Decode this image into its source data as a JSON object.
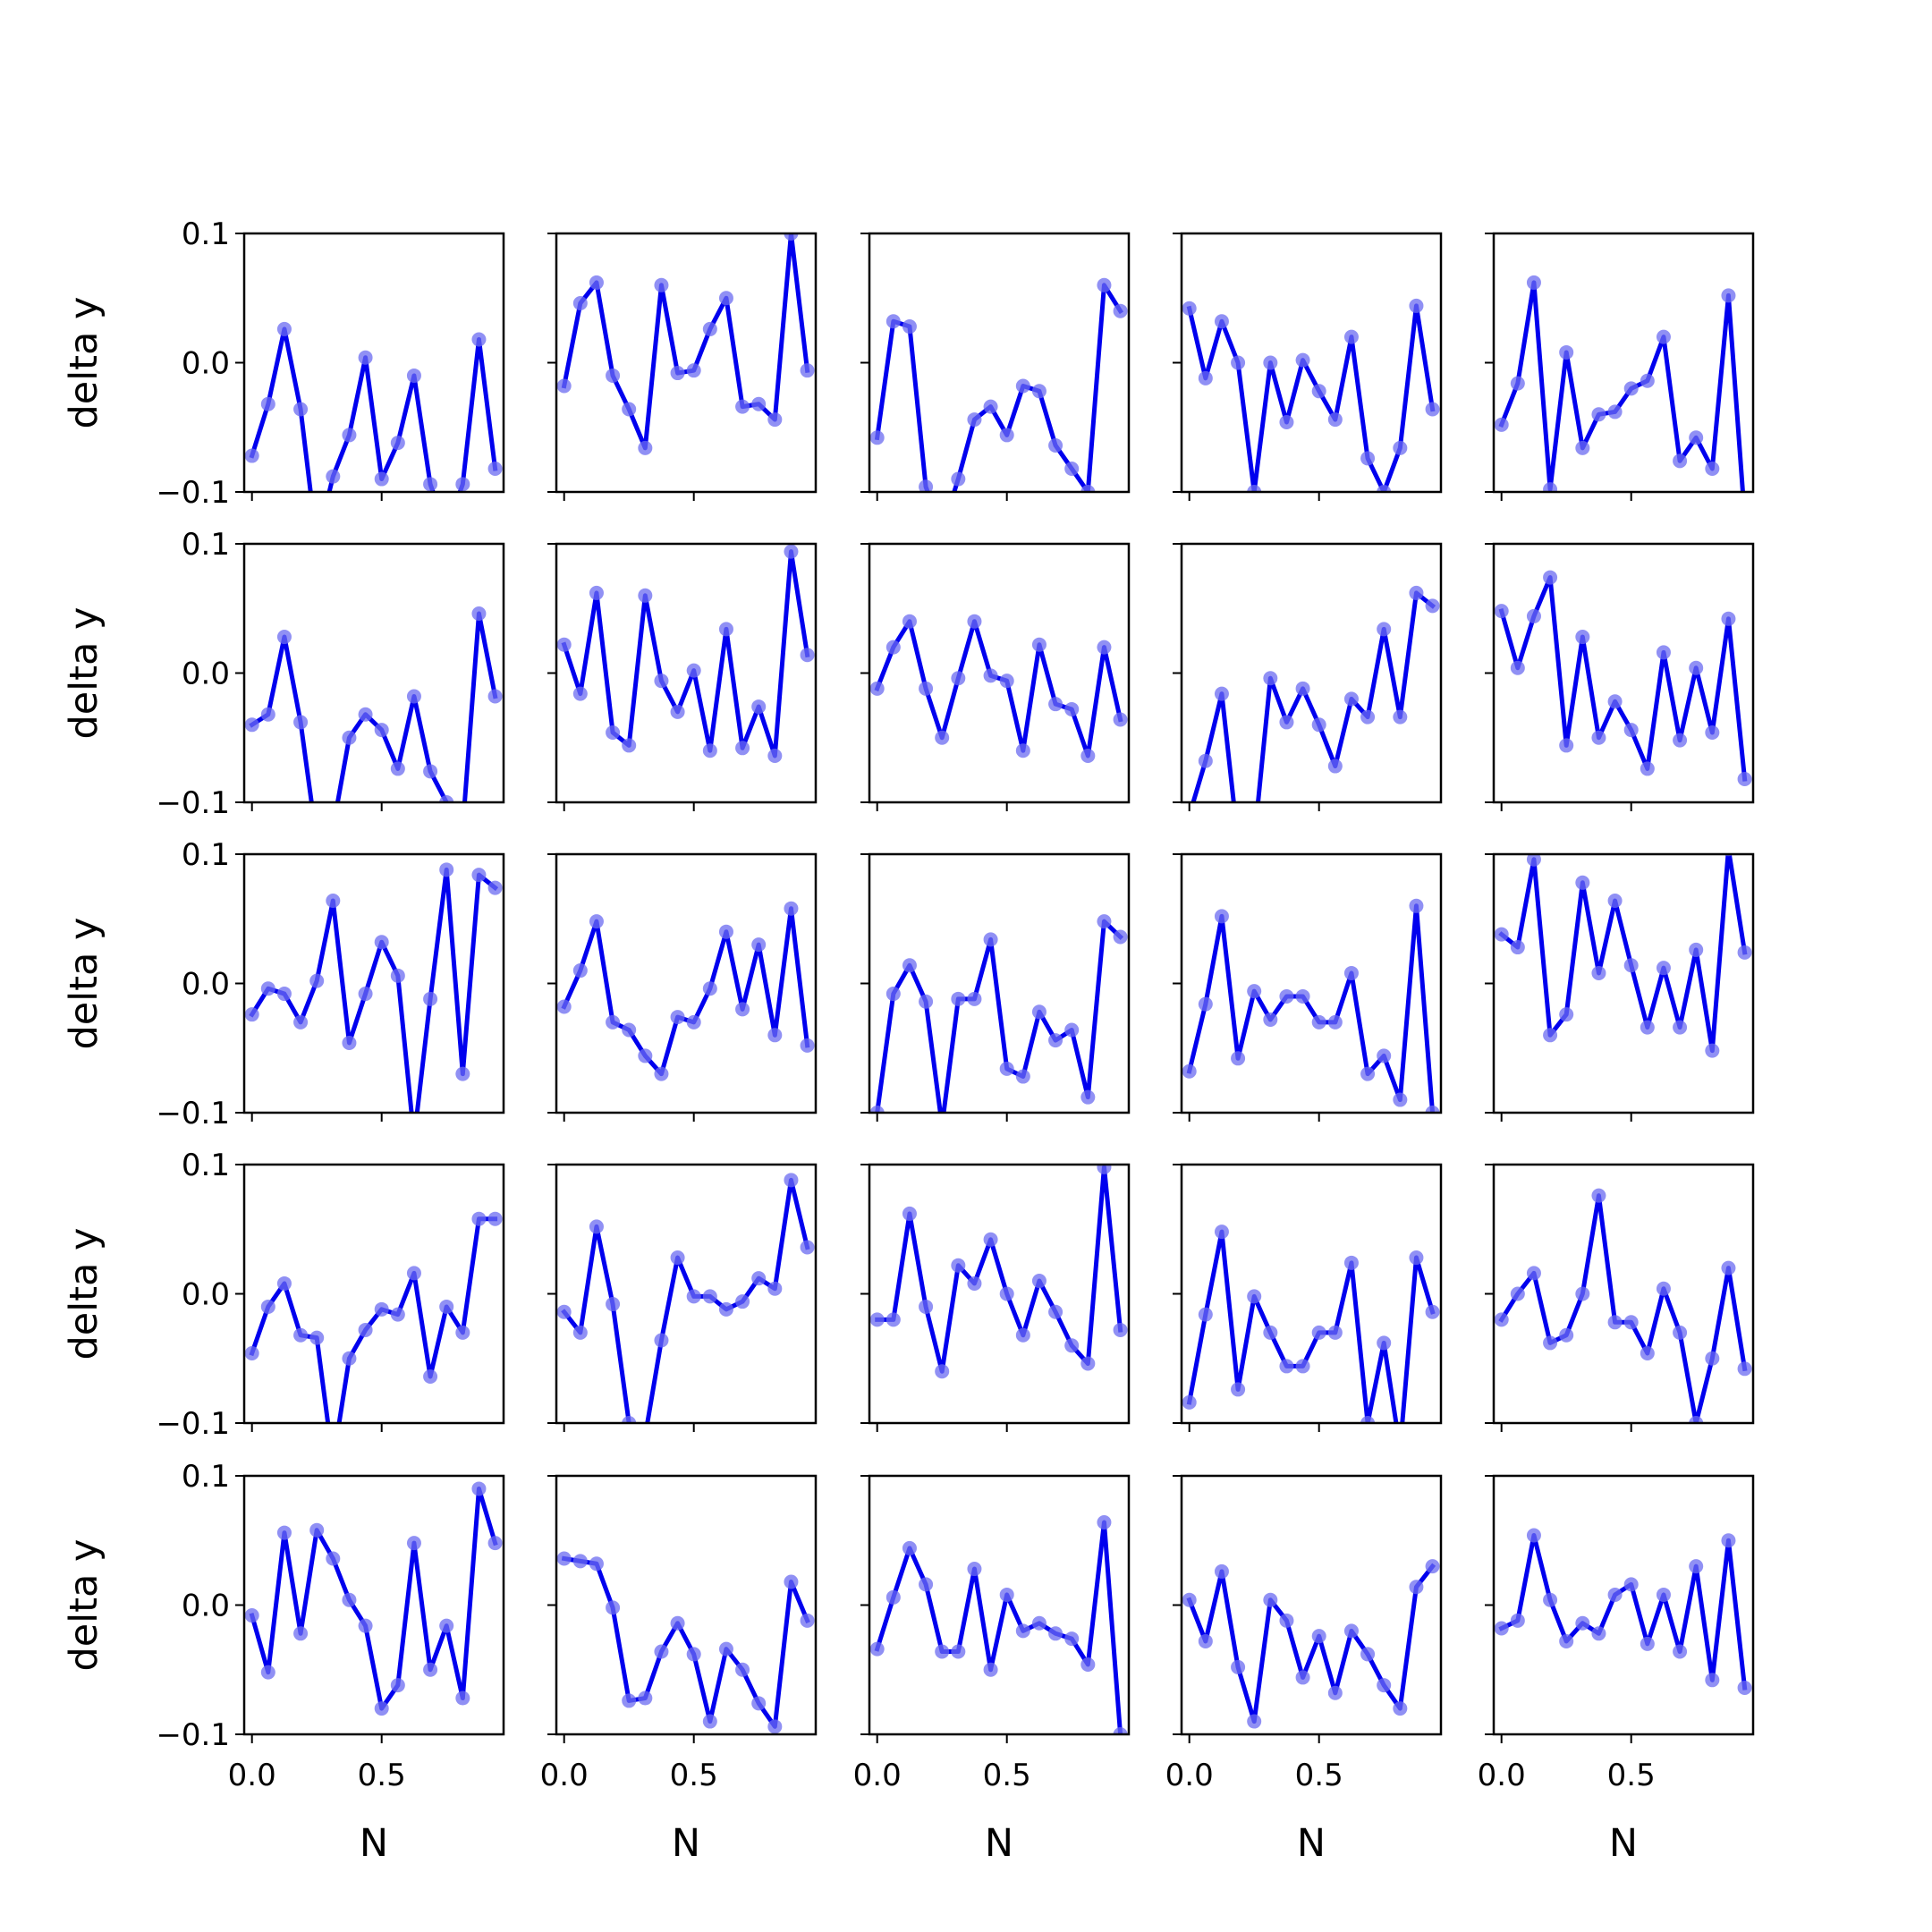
{
  "chart_data": {
    "type": "line",
    "layout": "5x5 grid of subplots",
    "xlabel": "N",
    "ylabel": "delta y",
    "ylim": [
      -0.1,
      0.1
    ],
    "xlim": [
      -0.03,
      0.97
    ],
    "yticks": [
      -0.1,
      0.0,
      0.1
    ],
    "ytick_labels": [
      "−0.1",
      "0.0",
      "0.1"
    ],
    "xticks": [
      0.0,
      0.5
    ],
    "xtick_labels": [
      "0.0",
      "0.5"
    ],
    "grid": false,
    "legend": "none",
    "x": [
      0.0,
      0.0625,
      0.125,
      0.1875,
      0.25,
      0.3125,
      0.375,
      0.4375,
      0.5,
      0.5625,
      0.625,
      0.6875,
      0.75,
      0.8125,
      0.875,
      0.9375
    ],
    "line_color": "#0000ee",
    "marker_color": "#6b6bf0",
    "panels": [
      [
        -0.072,
        -0.032,
        0.026,
        -0.036,
        -0.14,
        -0.088,
        -0.056,
        0.004,
        -0.09,
        -0.062,
        -0.01,
        -0.094,
        -0.13,
        -0.094,
        0.018,
        -0.082
      ],
      [
        -0.018,
        0.046,
        0.062,
        -0.01,
        -0.036,
        -0.066,
        0.06,
        -0.008,
        -0.006,
        0.026,
        0.05,
        -0.034,
        -0.032,
        -0.044,
        0.1,
        -0.006
      ],
      [
        -0.058,
        0.032,
        0.028,
        -0.096,
        -0.13,
        -0.09,
        -0.044,
        -0.034,
        -0.056,
        -0.018,
        -0.022,
        -0.064,
        -0.082,
        -0.1,
        0.06,
        0.04
      ],
      [
        0.042,
        -0.012,
        0.032,
        0.0,
        -0.1,
        0.0,
        -0.046,
        0.002,
        -0.022,
        -0.044,
        0.02,
        -0.074,
        -0.1,
        -0.066,
        0.044,
        -0.036
      ],
      [
        -0.048,
        -0.016,
        0.062,
        -0.098,
        0.008,
        -0.066,
        -0.04,
        -0.038,
        -0.02,
        -0.014,
        0.02,
        -0.076,
        -0.058,
        -0.082,
        0.052,
        -0.12
      ],
      [
        -0.04,
        -0.032,
        0.028,
        -0.038,
        -0.13,
        -0.12,
        -0.05,
        -0.032,
        -0.044,
        -0.074,
        -0.018,
        -0.076,
        -0.1,
        -0.12,
        0.046,
        -0.018
      ],
      [
        0.022,
        -0.016,
        0.062,
        -0.046,
        -0.056,
        0.06,
        -0.006,
        -0.03,
        0.002,
        -0.06,
        0.034,
        -0.058,
        -0.026,
        -0.064,
        0.094,
        0.014
      ],
      [
        -0.012,
        0.02,
        0.04,
        -0.012,
        -0.05,
        -0.004,
        0.04,
        -0.002,
        -0.006,
        -0.06,
        0.022,
        -0.024,
        -0.028,
        -0.064,
        0.02,
        -0.036
      ],
      [
        -0.11,
        -0.068,
        -0.016,
        -0.13,
        -0.13,
        -0.004,
        -0.038,
        -0.012,
        -0.04,
        -0.072,
        -0.02,
        -0.034,
        0.034,
        -0.034,
        0.062,
        0.052
      ],
      [
        0.048,
        0.004,
        0.044,
        0.074,
        -0.056,
        0.028,
        -0.05,
        -0.022,
        -0.044,
        -0.074,
        0.016,
        -0.052,
        0.004,
        -0.046,
        0.042,
        -0.082
      ],
      [
        -0.024,
        -0.004,
        -0.008,
        -0.03,
        0.002,
        0.064,
        -0.046,
        -0.008,
        0.032,
        0.006,
        -0.12,
        -0.012,
        0.088,
        -0.07,
        0.084,
        0.074
      ],
      [
        -0.018,
        0.01,
        0.048,
        -0.03,
        -0.036,
        -0.056,
        -0.07,
        -0.026,
        -0.03,
        -0.004,
        0.04,
        -0.02,
        0.03,
        -0.04,
        0.058,
        -0.048
      ],
      [
        -0.1,
        -0.008,
        0.014,
        -0.014,
        -0.11,
        -0.012,
        -0.012,
        0.034,
        -0.066,
        -0.072,
        -0.022,
        -0.044,
        -0.036,
        -0.088,
        0.048,
        0.036
      ],
      [
        -0.068,
        -0.016,
        0.052,
        -0.058,
        -0.006,
        -0.028,
        -0.01,
        -0.01,
        -0.03,
        -0.03,
        0.008,
        -0.07,
        -0.056,
        -0.09,
        0.06,
        -0.1
      ],
      [
        0.038,
        0.028,
        0.096,
        -0.04,
        -0.024,
        0.078,
        0.008,
        0.064,
        0.014,
        -0.034,
        0.012,
        -0.034,
        0.026,
        -0.052,
        0.104,
        0.024
      ],
      [
        -0.046,
        -0.01,
        0.008,
        -0.032,
        -0.034,
        -0.13,
        -0.05,
        -0.028,
        -0.012,
        -0.016,
        0.016,
        -0.064,
        -0.01,
        -0.03,
        0.058,
        0.058
      ],
      [
        -0.014,
        -0.03,
        0.052,
        -0.008,
        -0.1,
        -0.11,
        -0.036,
        0.028,
        -0.002,
        -0.002,
        -0.012,
        -0.006,
        0.012,
        0.004,
        0.088,
        0.036
      ],
      [
        -0.02,
        -0.02,
        0.062,
        -0.01,
        -0.06,
        0.022,
        0.008,
        0.042,
        0.0,
        -0.032,
        0.01,
        -0.014,
        -0.04,
        -0.054,
        0.098,
        -0.028
      ],
      [
        -0.084,
        -0.016,
        0.048,
        -0.074,
        -0.002,
        -0.03,
        -0.056,
        -0.056,
        -0.03,
        -0.03,
        0.024,
        -0.1,
        -0.038,
        -0.12,
        0.028,
        -0.014
      ],
      [
        -0.02,
        0.0,
        0.016,
        -0.038,
        -0.032,
        0.0,
        0.076,
        -0.022,
        -0.022,
        -0.046,
        0.004,
        -0.03,
        -0.1,
        -0.05,
        0.02,
        -0.058
      ],
      [
        -0.008,
        -0.052,
        0.056,
        -0.022,
        0.058,
        0.036,
        0.004,
        -0.016,
        -0.08,
        -0.062,
        0.048,
        -0.05,
        -0.016,
        -0.072,
        0.09,
        0.048
      ],
      [
        0.036,
        0.034,
        0.032,
        -0.002,
        -0.074,
        -0.072,
        -0.036,
        -0.014,
        -0.038,
        -0.09,
        -0.034,
        -0.05,
        -0.076,
        -0.094,
        0.018,
        -0.012
      ],
      [
        -0.034,
        0.006,
        0.044,
        0.016,
        -0.036,
        -0.036,
        0.028,
        -0.05,
        0.008,
        -0.02,
        -0.014,
        -0.022,
        -0.026,
        -0.046,
        0.064,
        -0.1
      ],
      [
        0.004,
        -0.028,
        0.026,
        -0.048,
        -0.09,
        0.004,
        -0.012,
        -0.056,
        -0.024,
        -0.068,
        -0.02,
        -0.038,
        -0.062,
        -0.08,
        0.014,
        0.03
      ],
      [
        -0.018,
        -0.012,
        0.054,
        0.004,
        -0.028,
        -0.014,
        -0.022,
        0.008,
        0.016,
        -0.03,
        0.008,
        -0.036,
        0.03,
        -0.058,
        0.05,
        -0.064
      ]
    ]
  }
}
